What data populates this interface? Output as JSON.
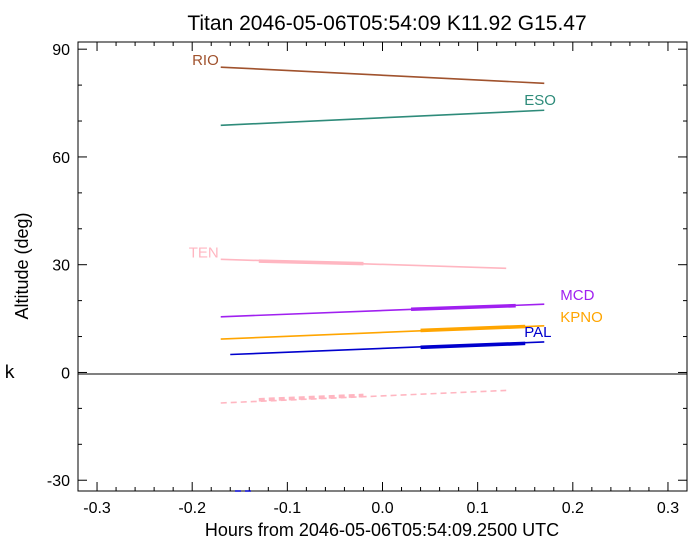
{
  "chart_data": {
    "type": "line",
    "title": "Titan 2046-05-06T05:54:09  K11.92  G15.47",
    "xlabel": "Hours from 2046-05-06T05:54:09.2500 UTC",
    "ylabel": "Altitude (deg)",
    "side_mark": "k",
    "xlim": [
      -0.32,
      0.32
    ],
    "ylim": [
      -33,
      92
    ],
    "xticks": [
      -0.3,
      -0.2,
      -0.1,
      0.0,
      0.1,
      0.2,
      0.3
    ],
    "xtick_labels": [
      "-0.3",
      "-0.2",
      "-0.1",
      "0.0",
      "0.1",
      "0.2",
      "0.3"
    ],
    "yticks": [
      -30,
      0,
      30,
      60,
      90
    ],
    "ytick_labels": [
      "-30",
      "0",
      "30",
      "60",
      "90"
    ],
    "zero_line": true,
    "grid": false,
    "series": [
      {
        "name": "RIO",
        "color": "#a0522d",
        "x": [
          -0.17,
          0.17
        ],
        "y": [
          85.0,
          80.5
        ],
        "style": "solid",
        "label_side": "left"
      },
      {
        "name": "ESO",
        "color": "#2e8b7a",
        "x": [
          -0.17,
          0.17
        ],
        "y": [
          68.8,
          73.0
        ],
        "style": "solid",
        "label_side": "right"
      },
      {
        "name": "TEN",
        "color": "#ffb6c1",
        "x": [
          -0.17,
          0.13
        ],
        "y": [
          31.5,
          29.0
        ],
        "style": "solid",
        "label_side": "left",
        "highlight": {
          "x": [
            -0.13,
            -0.02
          ],
          "y": [
            31.0,
            30.3
          ]
        }
      },
      {
        "name": "MCD",
        "color": "#a020f0",
        "x": [
          -0.17,
          0.17
        ],
        "y": [
          15.5,
          19.0
        ],
        "style": "solid",
        "label_side": "far",
        "highlight": {
          "x": [
            0.03,
            0.14
          ],
          "y": [
            17.6,
            18.6
          ]
        }
      },
      {
        "name": "KPNO",
        "color": "#ffa500",
        "x": [
          -0.17,
          0.17
        ],
        "y": [
          9.3,
          13.0
        ],
        "style": "solid",
        "label_side": "far",
        "highlight": {
          "x": [
            0.04,
            0.15
          ],
          "y": [
            11.7,
            12.8
          ]
        }
      },
      {
        "name": "PAL",
        "color": "#0000cd",
        "x": [
          -0.16,
          0.17
        ],
        "y": [
          5.0,
          8.5
        ],
        "style": "solid",
        "label_side": "right",
        "highlight": {
          "x": [
            0.04,
            0.15
          ],
          "y": [
            7.0,
            8.1
          ]
        }
      },
      {
        "name": "",
        "color": "#ffb6c1",
        "x": [
          -0.17,
          0.13
        ],
        "y": [
          -8.5,
          -5.0
        ],
        "style": "dashed",
        "highlight": {
          "x": [
            -0.13,
            -0.02
          ],
          "y": [
            -7.6,
            -6.4
          ]
        }
      },
      {
        "name": "",
        "color": "#0000cd",
        "x": [
          -0.155,
          -0.135
        ],
        "y": [
          -33.0,
          -33.0
        ],
        "style": "dashed"
      }
    ]
  }
}
